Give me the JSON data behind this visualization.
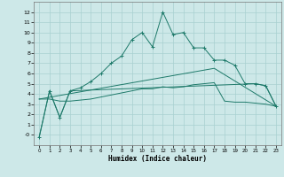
{
  "xlabel": "Humidex (Indice chaleur)",
  "background_color": "#cde8e8",
  "line_color": "#1e7a6a",
  "grid_color": "#a8d0d0",
  "xlim": [
    -0.5,
    23.5
  ],
  "ylim": [
    -1,
    13
  ],
  "xticks": [
    0,
    1,
    2,
    3,
    4,
    5,
    6,
    7,
    8,
    9,
    10,
    11,
    12,
    13,
    14,
    15,
    16,
    17,
    18,
    19,
    20,
    21,
    22,
    23
  ],
  "yticks": [
    0,
    1,
    2,
    3,
    4,
    5,
    6,
    7,
    8,
    9,
    10,
    11,
    12
  ],
  "series1_x": [
    0,
    1,
    2,
    3,
    4,
    5,
    6,
    7,
    8,
    9,
    10,
    11,
    12,
    13,
    14,
    15,
    16,
    17,
    18,
    19,
    20,
    21,
    22,
    23
  ],
  "series1_y": [
    -0.2,
    4.3,
    1.7,
    4.3,
    4.6,
    5.2,
    6.0,
    7.0,
    7.7,
    9.3,
    10.0,
    8.6,
    12.0,
    9.8,
    10.0,
    8.5,
    8.5,
    7.3,
    7.3,
    6.8,
    5.0,
    5.0,
    4.8,
    2.8
  ],
  "series2_x": [
    0,
    1,
    2,
    3,
    21,
    22,
    23
  ],
  "series2_y": [
    -0.2,
    4.3,
    1.7,
    4.3,
    5.0,
    4.8,
    2.8
  ],
  "series3_x": [
    0,
    1,
    2,
    3,
    4,
    5,
    6,
    7,
    8,
    9,
    10,
    11,
    12,
    13,
    14,
    15,
    16,
    17,
    18,
    19,
    20,
    21,
    22,
    23
  ],
  "series3_y": [
    3.5,
    3.5,
    3.3,
    3.3,
    3.4,
    3.5,
    3.7,
    3.9,
    4.1,
    4.3,
    4.5,
    4.5,
    4.7,
    4.6,
    4.7,
    4.9,
    5.0,
    5.1,
    3.3,
    3.2,
    3.2,
    3.1,
    3.0,
    2.8
  ],
  "series4_x": [
    0,
    17,
    23
  ],
  "series4_y": [
    3.5,
    6.5,
    2.8
  ],
  "ytick_labels": [
    "-0",
    "1",
    "2",
    "3",
    "4",
    "5",
    "6",
    "7",
    "8",
    "9",
    "10",
    "11",
    "12"
  ]
}
